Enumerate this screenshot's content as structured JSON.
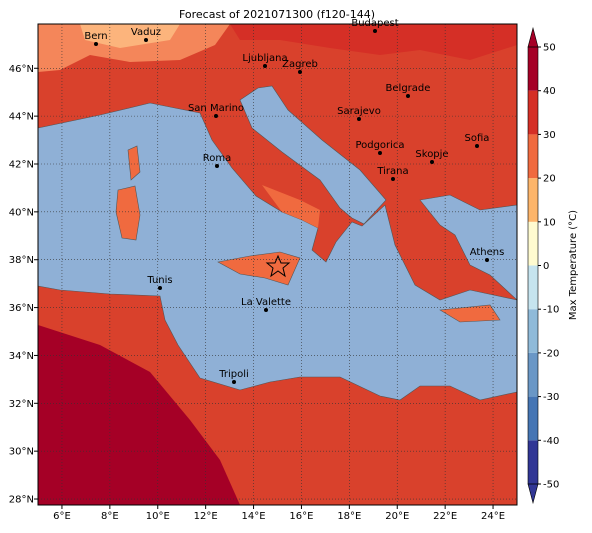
{
  "title": "Forecast of 2021071300 (f120-144)",
  "lon_range": [
    5,
    25
  ],
  "lat_range": [
    27.75,
    47.85
  ],
  "lon_ticks": [
    {
      "value": 6,
      "label": "6°E"
    },
    {
      "value": 8,
      "label": "8°E"
    },
    {
      "value": 10,
      "label": "10°E"
    },
    {
      "value": 12,
      "label": "12°E"
    },
    {
      "value": 14,
      "label": "14°E"
    },
    {
      "value": 16,
      "label": "16°E"
    },
    {
      "value": 18,
      "label": "18°E"
    },
    {
      "value": 20,
      "label": "20°E"
    },
    {
      "value": 22,
      "label": "22°E"
    },
    {
      "value": 24,
      "label": "24°E"
    }
  ],
  "lat_ticks": [
    {
      "value": 28,
      "label": "28°N"
    },
    {
      "value": 30,
      "label": "30°N"
    },
    {
      "value": 32,
      "label": "32°N"
    },
    {
      "value": 34,
      "label": "34°N"
    },
    {
      "value": 36,
      "label": "36°N"
    },
    {
      "value": 38,
      "label": "38°N"
    },
    {
      "value": 40,
      "label": "40°N"
    },
    {
      "value": 42,
      "label": "42°N"
    },
    {
      "value": 44,
      "label": "44°N"
    },
    {
      "value": 46,
      "label": "46°N"
    }
  ],
  "cities": [
    "Bern",
    "Vaduz",
    "Budapest",
    "Ljubljana",
    "Zagreb",
    "Belgrade",
    "San Marino",
    "Sarajevo",
    "Sofia",
    "Podgorica",
    "Skopje",
    "Roma",
    "Tirana",
    "Athens",
    "Tunis",
    "La Valette",
    "Tripoli"
  ],
  "colorbar": {
    "label": "Max Temperature (°C)",
    "range": [
      -50,
      50
    ],
    "ticks": [
      -50,
      -40,
      -30,
      -20,
      -10,
      0,
      10,
      20,
      30,
      40,
      50
    ],
    "colors": [
      "#313695",
      "#4575b4",
      "#6a97c6",
      "#8fbad9",
      "#c6e4ef",
      "#fffbd0",
      "#fdb56a",
      "#f06a3f",
      "#d52f26",
      "#a50026"
    ]
  }
}
